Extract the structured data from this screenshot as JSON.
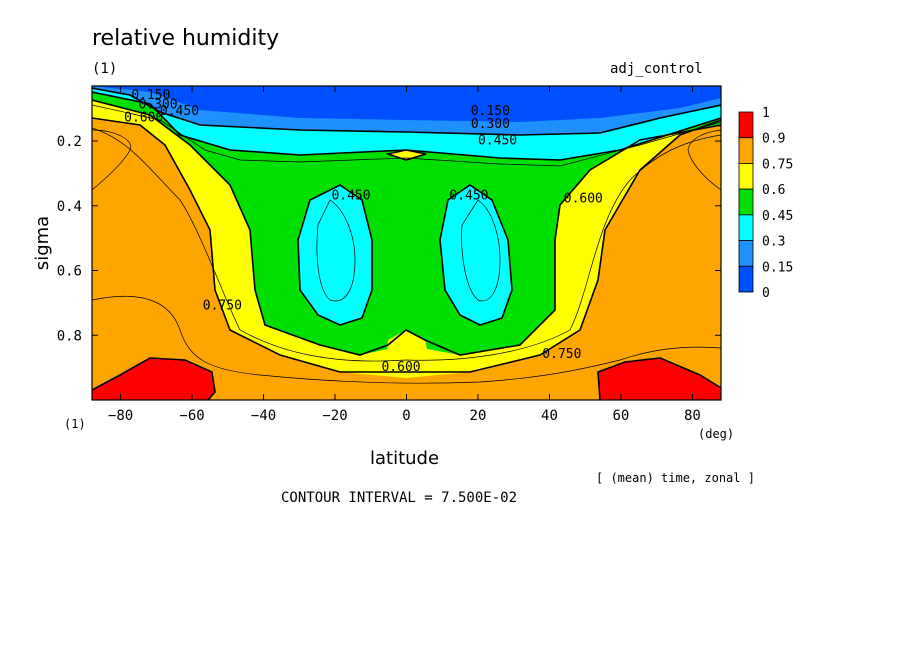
{
  "header": {
    "title": "relative humidity",
    "panel_id": "(1)",
    "run_name": "adj_control"
  },
  "footer": {
    "left_marker": "(1)",
    "x_unit": "(deg)",
    "averaging_note": "[ (mean) time, zonal ]",
    "contour_interval": "CONTOUR INTERVAL = 7.500E-02"
  },
  "chart_data": {
    "type": "heatmap",
    "title": "relative humidity",
    "xlabel": "latitude",
    "ylabel": "sigma",
    "xlim": [
      -88,
      88
    ],
    "ylim": [
      1.0,
      0.03
    ],
    "x_ticks": [
      -80,
      -60,
      -40,
      -20,
      0,
      20,
      40,
      60,
      80
    ],
    "x_tick_labels": [
      "−80",
      "−60",
      "−40",
      "−20",
      "0",
      "20",
      "40",
      "60",
      "80"
    ],
    "y_ticks": [
      0.2,
      0.4,
      0.6,
      0.8
    ],
    "y_tick_labels": [
      "0.2",
      "0.4",
      "0.6",
      "0.8"
    ],
    "levels": [
      0,
      0.15,
      0.3,
      0.45,
      0.6,
      0.75,
      0.9,
      1
    ],
    "colorbar": {
      "labels": [
        "1",
        "0.9",
        "0.75",
        "0.6",
        "0.45",
        "0.3",
        "0.15",
        "0"
      ],
      "colors": [
        "#ff0000",
        "#ffa500",
        "#ffff00",
        "#00e000",
        "#00ffff",
        "#1e90ff",
        "#0050ff"
      ]
    },
    "contour_labels": [
      {
        "text": "0.150",
        "lat": -77,
        "sigma": 0.07
      },
      {
        "text": "0.300",
        "lat": -75,
        "sigma": 0.1
      },
      {
        "text": "0.450",
        "lat": -69,
        "sigma": 0.12
      },
      {
        "text": "0.600",
        "lat": -79,
        "sigma": 0.14
      },
      {
        "text": "0.150",
        "lat": 18,
        "sigma": 0.12
      },
      {
        "text": "0.300",
        "lat": 18,
        "sigma": 0.16
      },
      {
        "text": "0.450",
        "lat": 20,
        "sigma": 0.21
      },
      {
        "text": "0.450",
        "lat": -21,
        "sigma": 0.38
      },
      {
        "text": "0.450",
        "lat": 12,
        "sigma": 0.38
      },
      {
        "text": "0.600",
        "lat": 44,
        "sigma": 0.39
      },
      {
        "text": "0.750",
        "lat": -57,
        "sigma": 0.72
      },
      {
        "text": "0.600",
        "lat": -7,
        "sigma": 0.91
      },
      {
        "text": "0.750",
        "lat": 38,
        "sigma": 0.87
      }
    ]
  }
}
